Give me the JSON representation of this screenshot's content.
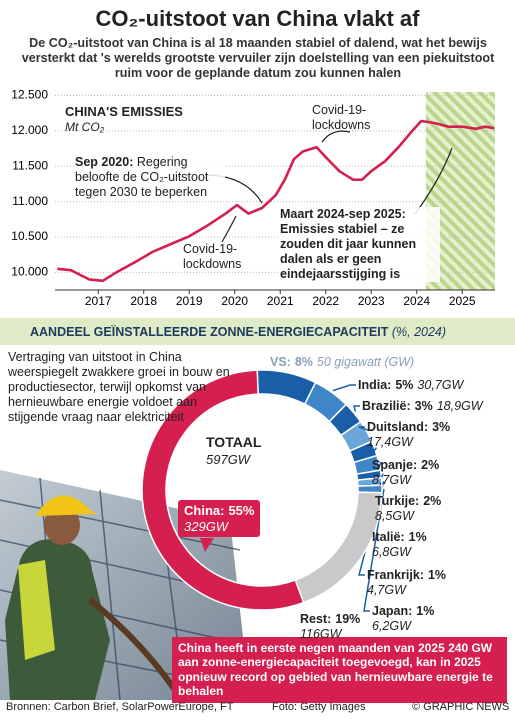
{
  "header": {
    "title": "CO₂-uitstoot van China vlakt af",
    "subtitle": "De CO₂-uitstoot van China is al 18 maanden stabiel of dalend, wat het bewijs versterkt dat 's werelds grootste vervuiler zijn doelstelling van een piekuitstoot ruim voor de geplande datum zou kunnen halen"
  },
  "chart_data": [
    {
      "type": "line",
      "title": "CHINA'S EMISSIES",
      "y_label": "Mt CO₂",
      "x": [
        2016.1,
        2016.4,
        2016.8,
        2017.1,
        2017.4,
        2017.8,
        2018.2,
        2018.6,
        2019.0,
        2019.4,
        2019.8,
        2020.05,
        2020.3,
        2020.6,
        2020.9,
        2021.1,
        2021.3,
        2021.5,
        2021.8,
        2022.0,
        2022.3,
        2022.6,
        2022.8,
        2023.0,
        2023.3,
        2023.6,
        2023.9,
        2024.1,
        2024.4,
        2024.7,
        2025.0,
        2025.3,
        2025.5,
        2025.7
      ],
      "series": [
        {
          "color": "#d51f4f",
          "values": [
            10050,
            10030,
            9900,
            9880,
            10000,
            10140,
            10290,
            10400,
            10510,
            10660,
            10830,
            10950,
            10830,
            10910,
            11090,
            11310,
            11600,
            11710,
            11770,
            11630,
            11430,
            11310,
            11310,
            11430,
            11570,
            11770,
            12000,
            12140,
            12110,
            12060,
            12060,
            12030,
            12060,
            12040
          ]
        }
      ],
      "xlim": [
        2016.05,
        2025.72
      ],
      "xticks": [
        2017,
        2018,
        2019,
        2020,
        2021,
        2022,
        2023,
        2024,
        2025
      ],
      "ylim": [
        9750,
        12550
      ],
      "yticks": [
        {
          "value": 10000,
          "label": "10.000"
        },
        {
          "value": 10500,
          "label": "10.500"
        },
        {
          "value": 11000,
          "label": "11.000"
        },
        {
          "value": 11500,
          "label": "11.500"
        },
        {
          "value": 12000,
          "label": "12.000"
        },
        {
          "value": 12500,
          "label": "12.500"
        }
      ],
      "grid": true,
      "highlight_xlim": [
        2024.2,
        2025.72
      ],
      "annotations": [
        {
          "label": "Sep 2020:",
          "text": "Regering beloofte de CO₂-uitstoot tegen 2030 te beperken"
        },
        {
          "text": "Covid-19-lockdowns"
        },
        {
          "text": "Covid-19-lockdowns"
        },
        {
          "text": "Maart 2024-sep 2025: Emissies stabiel – ze zouden dit jaar kunnen dalen als er geen eindejaarsstijging is"
        }
      ]
    },
    {
      "type": "pie",
      "title": "AANDEEL GEÏNSTALLEERDE ZONNE-ENERGIECAPACITEIT",
      "subtitle": "(%, 2024)",
      "categories": [
        "VS:",
        "India:",
        "Brazilië:",
        "Duitsland:",
        "Spanje:",
        "Turkije:",
        "Italië:",
        "Frankrijk:",
        "Japan:",
        "Rest:",
        "China:"
      ],
      "values": [
        8,
        5,
        3,
        3,
        2,
        2,
        1,
        1,
        1,
        19,
        55
      ],
      "value_labels": [
        "8%",
        "5%",
        "3%",
        "3%",
        "2%",
        "2%",
        "1%",
        "1%",
        "1%",
        "19%",
        "55%"
      ],
      "gw_labels": [
        "50 gigawatt (GW)",
        "30,7GW",
        "18,9GW",
        "17,4GW",
        "8,7GW",
        "8,5GW",
        "6,8GW",
        "4,7GW",
        "6,2GW",
        "116GW",
        "329GW"
      ],
      "colors": [
        "#1a5ea8",
        "#3f86c8",
        "#1a5ea8",
        "#6aa6d9",
        "#1a5ea8",
        "#3f86c8",
        "#1a5ea8",
        "#6aa6d9",
        "#3f86c8",
        "#c9c9c9",
        "#d51f4f"
      ],
      "total_label": "TOTAAL",
      "total_value_label": "597GW",
      "note": "Vertraging van uitstoot in China weerspiegelt zwakkere groei in bouw en productiesector, terwijl opkomst van hernieuwbare energie voldoet aan stijgende vraag naar elektriciteit",
      "callout": "China heeft in eerste negen maanden van 2025 240 GW aan zonne-energiecapaciteit toegevoegd, kan in 2025 opnieuw record op gebied van hernieuwbare energie te behalen"
    }
  ],
  "footer": {
    "sources": "Bronnen: Carbon Brief, SolarPowerEurope, FT",
    "photo": "Foto: Getty Images",
    "credit": "© GRAPHIC NEWS"
  }
}
